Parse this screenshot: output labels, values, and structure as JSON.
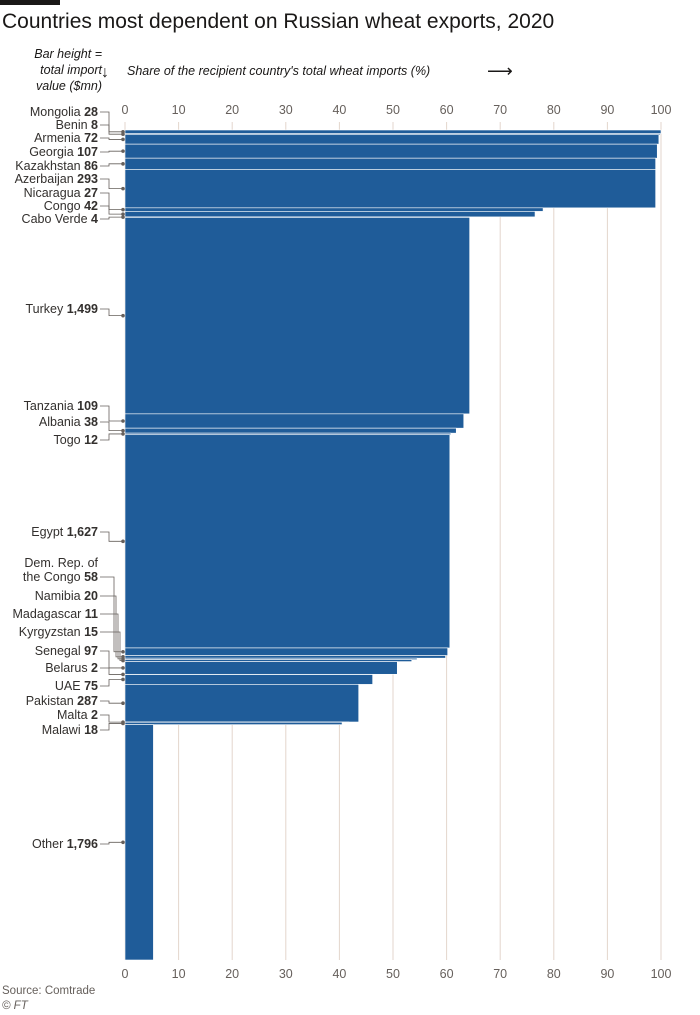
{
  "title": "Countries most dependent on Russian wheat exports, 2020",
  "bar_note": "Bar height = total import value ($mn)",
  "x_axis_note": "Share of the recipient country's total wheat imports (%)",
  "source": "Source: Comtrade",
  "credit": "© FT",
  "colors": {
    "bar": "#1f5c99",
    "grid": "#e3d6cc",
    "leader": "#66605c"
  },
  "chart_data": {
    "type": "bar",
    "orientation": "horizontal",
    "variable_width": true,
    "title": "Countries most dependent on Russian wheat exports, 2020",
    "xlabel": "Share of the recipient country's total wheat imports (%)",
    "height_label": "Bar height = total import value ($mn)",
    "xlim": [
      0,
      100
    ],
    "xticks": [
      0,
      10,
      20,
      30,
      40,
      50,
      60,
      70,
      80,
      90,
      100
    ],
    "grid": true,
    "countries": [
      {
        "name": "Mongolia",
        "import_value": 28,
        "value_label": "28",
        "share": 100
      },
      {
        "name": "Benin",
        "import_value": 8,
        "value_label": "8",
        "share": 99.9
      },
      {
        "name": "Armenia",
        "import_value": 72,
        "value_label": "72",
        "share": 99.6
      },
      {
        "name": "Georgia",
        "import_value": 107,
        "value_label": "107",
        "share": 99.3
      },
      {
        "name": "Kazakhstan",
        "import_value": 86,
        "value_label": "86",
        "share": 99
      },
      {
        "name": "Azerbaijan",
        "import_value": 293,
        "value_label": "293",
        "share": 99
      },
      {
        "name": "Nicaragua",
        "import_value": 27,
        "value_label": "27",
        "share": 78
      },
      {
        "name": "Congo",
        "import_value": 42,
        "value_label": "42",
        "share": 76.5
      },
      {
        "name": "Cabo Verde",
        "import_value": 4,
        "value_label": "4",
        "share": 64.3
      },
      {
        "name": "Turkey",
        "import_value": 1499,
        "value_label": "1,499",
        "share": 64.3
      },
      {
        "name": "Tanzania",
        "import_value": 109,
        "value_label": "109",
        "share": 63.2
      },
      {
        "name": "Albania",
        "import_value": 38,
        "value_label": "38",
        "share": 61.8
      },
      {
        "name": "Togo",
        "import_value": 12,
        "value_label": "12",
        "share": 60.8
      },
      {
        "name": "Egypt",
        "import_value": 1627,
        "value_label": "1,627",
        "share": 60.6
      },
      {
        "name": "Dem. Rep. of the Congo",
        "import_value": 58,
        "value_label": "58",
        "share": 60.2
      },
      {
        "name": "Namibia",
        "import_value": 20,
        "value_label": "20",
        "share": 59.8
      },
      {
        "name": "Madagascar",
        "import_value": 11,
        "value_label": "11",
        "share": 54.5
      },
      {
        "name": "Kyrgyzstan",
        "import_value": 15,
        "value_label": "15",
        "share": 53.5
      },
      {
        "name": "Senegal",
        "import_value": 97,
        "value_label": "97",
        "share": 50.8
      },
      {
        "name": "Belarus",
        "import_value": 2,
        "value_label": "2",
        "share": 46.5
      },
      {
        "name": "UAE",
        "import_value": 75,
        "value_label": "75",
        "share": 46.2
      },
      {
        "name": "Pakistan",
        "import_value": 287,
        "value_label": "287",
        "share": 43.6
      },
      {
        "name": "Malta",
        "import_value": 2,
        "value_label": "2",
        "share": 41.8
      },
      {
        "name": "Malawi",
        "import_value": 18,
        "value_label": "18",
        "share": 40.5
      },
      {
        "name": "Other",
        "import_value": 1796,
        "value_label": "1,796",
        "share": 5.3
      }
    ]
  }
}
